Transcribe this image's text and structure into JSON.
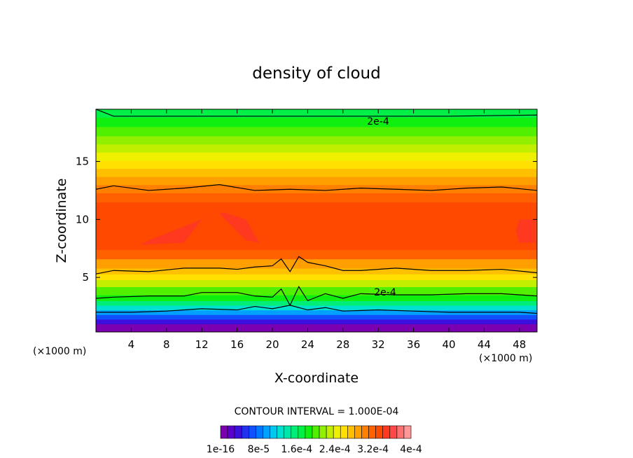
{
  "chart_data": {
    "type": "heatmap",
    "title": "density of cloud",
    "xlabel": "X-coordinate",
    "ylabel": "Z-coordinate",
    "x_unit_left": "(×1000 m)",
    "x_unit_right": "(×1000 m)",
    "xlim": [
      0,
      50
    ],
    "ylim": [
      0.3,
      19.5
    ],
    "x_ticks": [
      4,
      8,
      12,
      16,
      20,
      24,
      28,
      32,
      36,
      40,
      44,
      48
    ],
    "y_ticks": [
      5,
      10,
      15
    ],
    "contour_interval_text": "CONTOUR INTERVAL = 1.000E-04",
    "contour_label": "2e-4",
    "colorbar": {
      "colors": [
        "#7a00b0",
        "#5a00c8",
        "#3b10dc",
        "#2233ee",
        "#1050ff",
        "#0078ff",
        "#00a0ff",
        "#00c8f0",
        "#00e0d0",
        "#00e6a8",
        "#00ee78",
        "#00f048",
        "#10f010",
        "#50f000",
        "#90f000",
        "#c0f000",
        "#eef000",
        "#ffe000",
        "#ffc000",
        "#ffa000",
        "#ff8000",
        "#ff6000",
        "#ff4800",
        "#ff3820",
        "#ff4848",
        "#ff7070",
        "#ff9898"
      ],
      "labels": [
        "1e-16",
        "8e-5",
        "1.6e-4",
        "2.4e-4",
        "3.2e-4",
        "4e-4"
      ]
    },
    "bands": [
      {
        "z": [
          0.3,
          1.0
        ],
        "color": "#7a00b0"
      },
      {
        "z": [
          1.0,
          1.4
        ],
        "color": "#3b10dc"
      },
      {
        "z": [
          1.4,
          1.8
        ],
        "color": "#1050ff"
      },
      {
        "z": [
          1.8,
          2.2
        ],
        "color": "#00a0ff"
      },
      {
        "z": [
          2.2,
          2.6
        ],
        "color": "#00e0d0"
      },
      {
        "z": [
          2.6,
          3.0
        ],
        "color": "#00ee78"
      },
      {
        "z": [
          3.0,
          3.5
        ],
        "color": "#10f010"
      },
      {
        "z": [
          3.5,
          4.2
        ],
        "color": "#50f000"
      },
      {
        "z": [
          4.2,
          4.8
        ],
        "color": "#c0f000"
      },
      {
        "z": [
          4.8,
          5.3
        ],
        "color": "#ffe000"
      },
      {
        "z": [
          5.3,
          5.8
        ],
        "color": "#ffc000"
      },
      {
        "z": [
          5.8,
          6.6
        ],
        "color": "#ffa000"
      },
      {
        "z": [
          6.6,
          7.4
        ],
        "color": "#ff6000"
      },
      {
        "z": [
          7.4,
          11.5
        ],
        "color": "#ff4800"
      },
      {
        "z": [
          11.5,
          12.3
        ],
        "color": "#ff6000"
      },
      {
        "z": [
          12.3,
          13.0
        ],
        "color": "#ff8000"
      },
      {
        "z": [
          13.0,
          13.7
        ],
        "color": "#ffa000"
      },
      {
        "z": [
          13.7,
          14.4
        ],
        "color": "#ffc000"
      },
      {
        "z": [
          14.4,
          15.1
        ],
        "color": "#ffe000"
      },
      {
        "z": [
          15.1,
          15.8
        ],
        "color": "#eef000"
      },
      {
        "z": [
          15.8,
          16.5
        ],
        "color": "#c0f000"
      },
      {
        "z": [
          16.5,
          17.2
        ],
        "color": "#90f000"
      },
      {
        "z": [
          17.2,
          18.0
        ],
        "color": "#50f000"
      },
      {
        "z": [
          18.0,
          18.8
        ],
        "color": "#10f010"
      },
      {
        "z": [
          18.8,
          19.5
        ],
        "color": "#00f048"
      }
    ],
    "peaks": [
      {
        "x": [
          5,
          10,
          12,
          14,
          10,
          6
        ],
        "z": [
          7.8,
          8.0,
          10.0,
          10.6,
          9.4,
          8.2
        ],
        "color": "#ff3820"
      },
      {
        "x": [
          14,
          17,
          18.5,
          17,
          14.5
        ],
        "z": [
          10.5,
          8.2,
          8.0,
          10.0,
          10.6
        ],
        "color": "#ff3820"
      },
      {
        "x": [
          48,
          49.8,
          49.8,
          48,
          47.6
        ],
        "z": [
          10.0,
          10.0,
          8.0,
          8.0,
          9.0
        ],
        "color": "#ff3820"
      }
    ],
    "contour_lines": [
      {
        "x": [
          0,
          1,
          2,
          10,
          20,
          30,
          40,
          50
        ],
        "z": [
          19.5,
          19.2,
          18.9,
          18.9,
          18.9,
          18.9,
          18.9,
          19.0
        ]
      },
      {
        "x": [
          0,
          2,
          6,
          10,
          14,
          18,
          22,
          26,
          30,
          34,
          38,
          42,
          46,
          50
        ],
        "z": [
          12.6,
          12.9,
          12.5,
          12.7,
          13.0,
          12.5,
          12.6,
          12.5,
          12.7,
          12.6,
          12.5,
          12.7,
          12.8,
          12.5
        ]
      },
      {
        "x": [
          0,
          2,
          6,
          10,
          14,
          16,
          18,
          20,
          21,
          22,
          23,
          24,
          26,
          28,
          30,
          34,
          38,
          42,
          46,
          50
        ],
        "z": [
          5.3,
          5.6,
          5.5,
          5.8,
          5.8,
          5.7,
          5.9,
          6.0,
          6.6,
          5.5,
          6.8,
          6.3,
          6.0,
          5.6,
          5.6,
          5.8,
          5.6,
          5.6,
          5.7,
          5.4
        ]
      },
      {
        "x": [
          0,
          2,
          6,
          10,
          12,
          16,
          18,
          20,
          21,
          22,
          23,
          24,
          26,
          28,
          30,
          34,
          38,
          42,
          46,
          50
        ],
        "z": [
          3.2,
          3.3,
          3.4,
          3.4,
          3.7,
          3.7,
          3.4,
          3.3,
          4.0,
          2.6,
          4.2,
          3.0,
          3.6,
          3.2,
          3.6,
          3.5,
          3.5,
          3.6,
          3.6,
          3.4
        ]
      },
      {
        "x": [
          0,
          4,
          8,
          12,
          16,
          18,
          20,
          22,
          24,
          26,
          28,
          32,
          36,
          40,
          44,
          48,
          50
        ],
        "z": [
          2.0,
          2.0,
          2.1,
          2.3,
          2.2,
          2.5,
          2.3,
          2.6,
          2.2,
          2.4,
          2.1,
          2.2,
          2.1,
          2.0,
          2.0,
          2.0,
          1.9
        ]
      }
    ]
  }
}
